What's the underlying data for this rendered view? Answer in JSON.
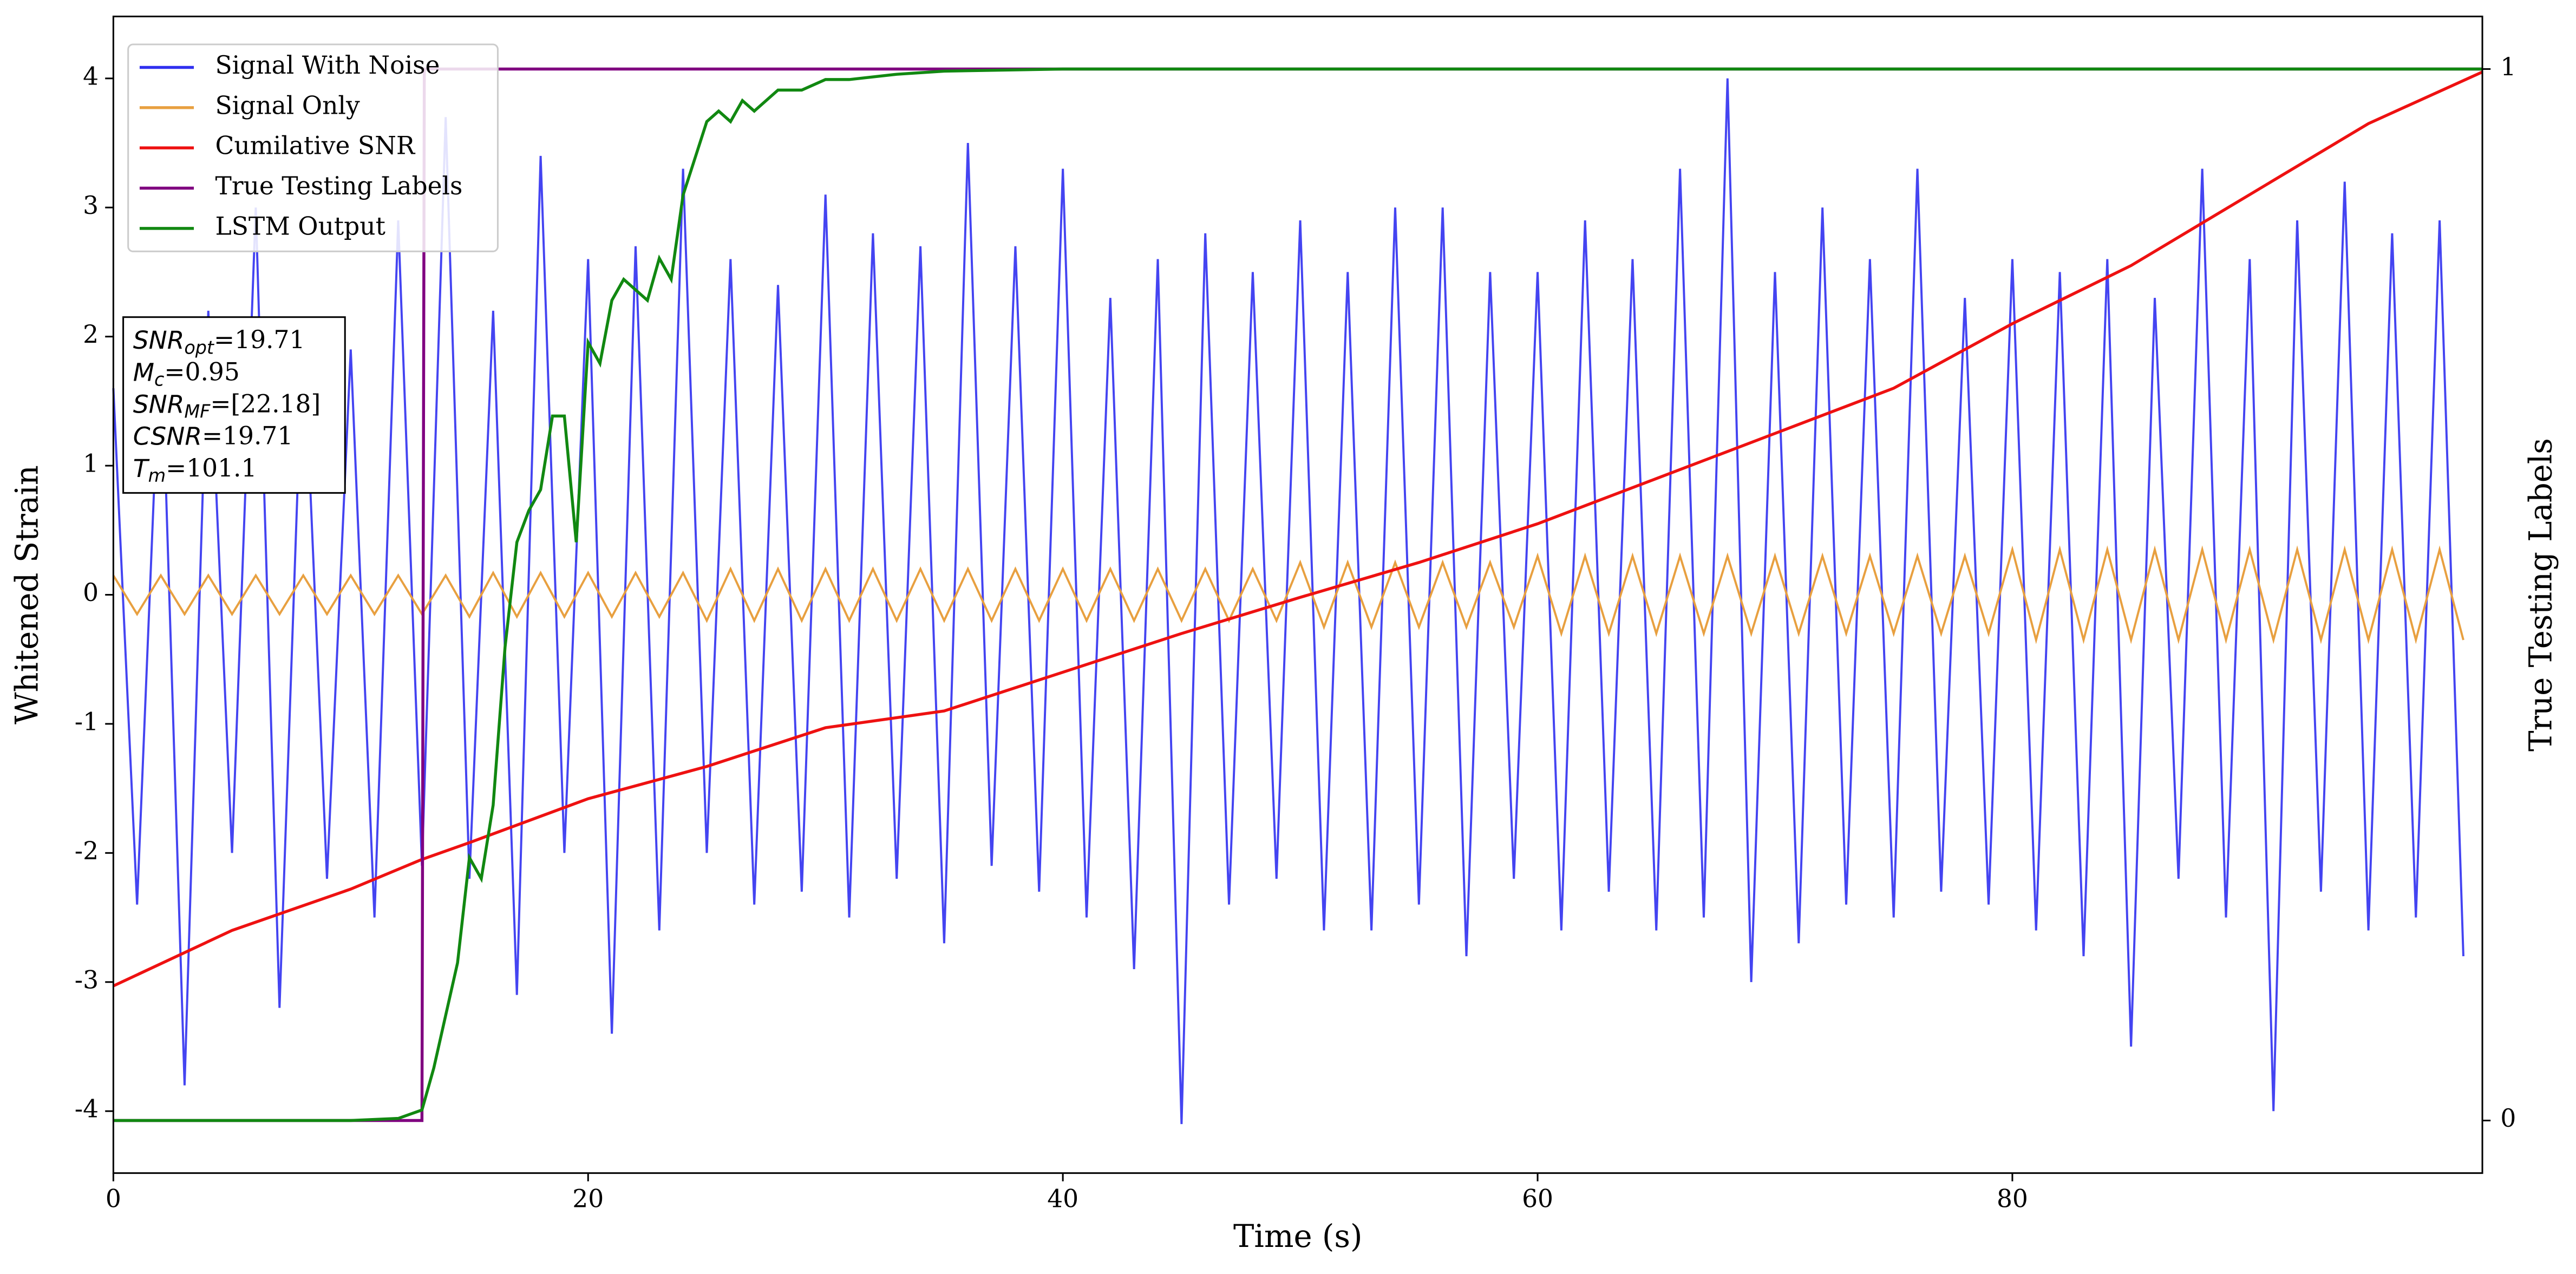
{
  "chart_data": {
    "type": "line",
    "xlabel": "Time (s)",
    "ylabel": "Whitened Strain",
    "y2label": "True Testing Labels",
    "xlim": [
      0,
      99.8
    ],
    "xticks": [
      0,
      20,
      40,
      60,
      80
    ],
    "ylim": [
      -4.48,
      4.48
    ],
    "yticks": [
      -4,
      -3,
      -2,
      -1,
      0,
      1,
      2,
      3,
      4
    ],
    "y2lim": [
      -0.05,
      1.05
    ],
    "y2ticks": [
      0,
      1
    ],
    "legend": "upper left",
    "x": [
      0,
      1,
      2,
      3,
      4,
      5,
      6,
      7,
      8,
      9,
      10,
      11,
      12,
      13,
      14,
      15,
      16,
      17,
      18,
      19,
      20,
      21,
      22,
      23,
      24,
      25,
      26,
      27,
      28,
      29,
      30,
      31,
      32,
      33,
      34,
      35,
      36,
      37,
      38,
      39,
      40,
      41,
      42,
      43,
      44,
      45,
      46,
      47,
      48,
      49,
      50,
      51,
      52,
      53,
      54,
      55,
      56,
      57,
      58,
      59,
      60,
      61,
      62,
      63,
      64,
      65,
      66,
      67,
      68,
      69,
      70,
      71,
      72,
      73,
      74,
      75,
      76,
      77,
      78,
      79,
      80,
      81,
      82,
      83,
      84,
      85,
      86,
      87,
      88,
      89,
      90,
      91,
      92,
      93,
      94,
      95,
      96,
      97,
      98,
      99
    ],
    "series": [
      {
        "name": "Signal With Noise",
        "color": "#3030f0",
        "axis": "y",
        "values": [
          1.6,
          -2.4,
          2.1,
          -3.8,
          2.2,
          -2.0,
          3.0,
          -3.2,
          2.1,
          -2.2,
          1.9,
          -2.5,
          2.9,
          -2.1,
          3.7,
          -2.2,
          2.2,
          -3.1,
          3.4,
          -2.0,
          2.6,
          -3.4,
          2.7,
          -2.6,
          3.3,
          -2.0,
          2.6,
          -2.4,
          2.4,
          -2.3,
          3.1,
          -2.5,
          2.8,
          -2.2,
          2.7,
          -2.7,
          3.5,
          -2.1,
          2.7,
          -2.3,
          3.3,
          -2.5,
          2.3,
          -2.9,
          2.6,
          -4.1,
          2.8,
          -2.4,
          2.5,
          -2.2,
          2.9,
          -2.6,
          2.5,
          -2.6,
          3.0,
          -2.4,
          3.0,
          -2.8,
          2.5,
          -2.2,
          2.5,
          -2.6,
          2.9,
          -2.3,
          2.6,
          -2.6,
          3.3,
          -2.5,
          4.0,
          -3.0,
          2.5,
          -2.7,
          3.0,
          -2.4,
          2.6,
          -2.5,
          3.3,
          -2.3,
          2.3,
          -2.4,
          2.6,
          -2.6,
          2.5,
          -2.8,
          2.6,
          -3.5,
          2.3,
          -2.2,
          3.3,
          -2.5,
          2.6,
          -4.0,
          2.9,
          -2.3,
          3.2,
          -2.6,
          2.8,
          -2.5,
          2.9,
          -2.8
        ]
      },
      {
        "name": "Signal Only",
        "color": "#e8a040",
        "axis": "y",
        "values": [
          0.15,
          -0.15,
          0.15,
          -0.15,
          0.15,
          -0.15,
          0.15,
          -0.15,
          0.15,
          -0.15,
          0.15,
          -0.15,
          0.15,
          -0.15,
          0.15,
          -0.17,
          0.17,
          -0.17,
          0.17,
          -0.17,
          0.17,
          -0.17,
          0.17,
          -0.17,
          0.17,
          -0.2,
          0.2,
          -0.2,
          0.2,
          -0.2,
          0.2,
          -0.2,
          0.2,
          -0.2,
          0.2,
          -0.2,
          0.2,
          -0.2,
          0.2,
          -0.2,
          0.2,
          -0.2,
          0.2,
          -0.2,
          0.2,
          -0.2,
          0.2,
          -0.2,
          0.2,
          -0.2,
          0.25,
          -0.25,
          0.25,
          -0.25,
          0.25,
          -0.25,
          0.25,
          -0.25,
          0.25,
          -0.25,
          0.3,
          -0.3,
          0.3,
          -0.3,
          0.3,
          -0.3,
          0.3,
          -0.3,
          0.3,
          -0.3,
          0.3,
          -0.3,
          0.3,
          -0.3,
          0.3,
          -0.3,
          0.3,
          -0.3,
          0.3,
          -0.3,
          0.35,
          -0.35,
          0.35,
          -0.35,
          0.35,
          -0.35,
          0.35,
          -0.35,
          0.35,
          -0.35,
          0.35,
          -0.35,
          0.35,
          -0.35,
          0.35,
          -0.35,
          0.35,
          -0.35,
          0.35,
          -0.35
        ]
      },
      {
        "name": "Cumilative SNR",
        "color": "#ee1111",
        "axis": "y",
        "x": [
          0,
          5,
          10,
          13,
          15,
          20,
          25,
          30,
          35,
          40,
          45,
          50,
          55,
          60,
          65,
          70,
          75,
          80,
          85,
          90,
          95,
          99.8
        ],
        "values": [
          -3.03,
          -2.6,
          -2.28,
          -2.05,
          -1.92,
          -1.58,
          -1.33,
          -1.03,
          -0.9,
          -0.6,
          -0.3,
          -0.02,
          0.25,
          0.55,
          0.9,
          1.25,
          1.6,
          2.1,
          2.55,
          3.1,
          3.65,
          4.05
        ]
      },
      {
        "name": "True Testing Labels",
        "color": "#800080",
        "axis": "y2",
        "x": [
          0,
          13,
          13.1,
          99.8
        ],
        "values": [
          0,
          0,
          1,
          1
        ]
      },
      {
        "name": "LSTM Output",
        "color": "#118811",
        "axis": "y2",
        "x": [
          0,
          10,
          12,
          13,
          13.5,
          14,
          14.5,
          15,
          15.5,
          16,
          16.5,
          17,
          17.5,
          18,
          18.5,
          19,
          19.5,
          20,
          20.5,
          21,
          21.5,
          22.5,
          23,
          23.5,
          24,
          25,
          25.5,
          26,
          26.5,
          27,
          28,
          29,
          30,
          31,
          33,
          35,
          40,
          99.8
        ],
        "values": [
          0,
          0,
          0.002,
          0.01,
          0.05,
          0.1,
          0.15,
          0.25,
          0.23,
          0.3,
          0.45,
          0.55,
          0.58,
          0.6,
          0.67,
          0.67,
          0.55,
          0.74,
          0.72,
          0.78,
          0.8,
          0.78,
          0.82,
          0.8,
          0.88,
          0.95,
          0.96,
          0.95,
          0.97,
          0.96,
          0.98,
          0.98,
          0.99,
          0.99,
          0.995,
          0.998,
          1,
          1
        ]
      }
    ],
    "annotations": [
      {
        "main": "SNR",
        "sub": "opt",
        "rest": "=19.71"
      },
      {
        "main": "M",
        "sub": "c",
        "rest": "=0.95"
      },
      {
        "main": "SNR",
        "sub": "MF",
        "rest": "=[22.18]"
      },
      {
        "main": "CSNR",
        "rest": "=19.71"
      },
      {
        "main": "T",
        "sub": "m",
        "rest": "=101.1"
      }
    ]
  }
}
